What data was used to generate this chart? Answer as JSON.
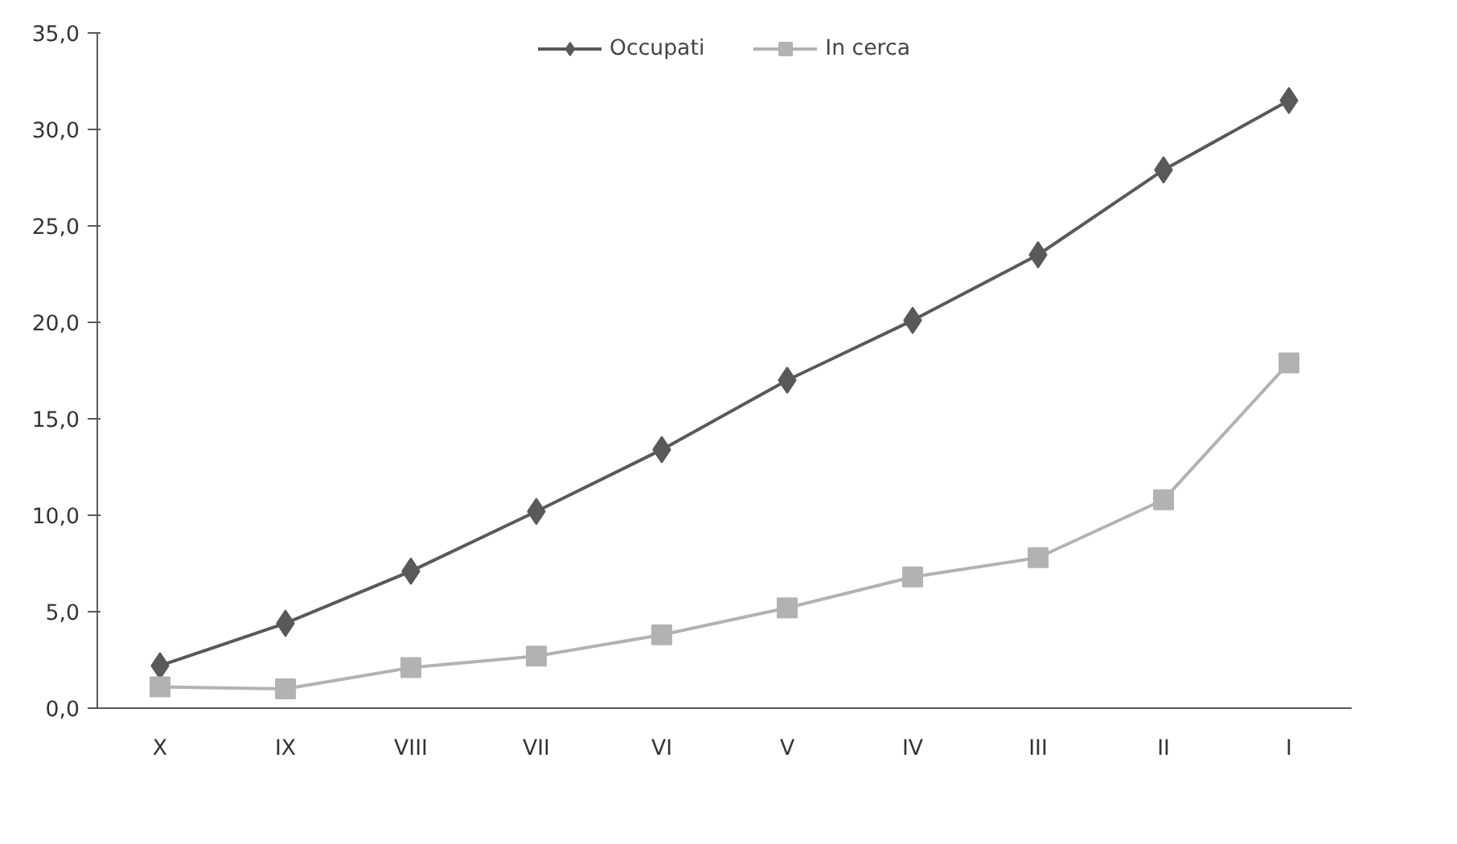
{
  "chart_data": {
    "type": "line",
    "categories": [
      "X",
      "IX",
      "VIII",
      "VII",
      "VI",
      "V",
      "IV",
      "III",
      "II",
      "I"
    ],
    "series": [
      {
        "name": "Occupati",
        "color": "#595959",
        "marker": "diamond",
        "values": [
          2.2,
          4.4,
          7.1,
          10.2,
          13.4,
          17.0,
          20.1,
          23.5,
          27.9,
          31.5
        ]
      },
      {
        "name": "In cerca",
        "color": "#b2b2b2",
        "marker": "square",
        "values": [
          1.1,
          1.0,
          2.1,
          2.7,
          3.8,
          5.2,
          6.8,
          7.8,
          10.8,
          17.9
        ]
      }
    ],
    "ylim": [
      0,
      35
    ],
    "yticks": [
      {
        "value": 0,
        "label": "0,0"
      },
      {
        "value": 5,
        "label": "5,0"
      },
      {
        "value": 10,
        "label": "10,0"
      },
      {
        "value": 15,
        "label": "15,0"
      },
      {
        "value": 20,
        "label": "20,0"
      },
      {
        "value": 25,
        "label": "25,0"
      },
      {
        "value": 30,
        "label": "30,0"
      },
      {
        "value": 35,
        "label": "35,0"
      }
    ],
    "grid": false,
    "legend": "top",
    "line_style": "solid"
  }
}
